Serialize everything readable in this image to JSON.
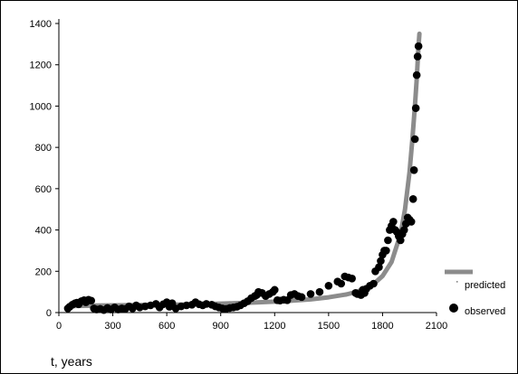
{
  "colors": {
    "predicted": "#8c8c8c",
    "observed": "#000000",
    "axis": "#000000"
  },
  "chart_data": {
    "type": "scatter",
    "title": "",
    "xlabel": "t, years",
    "ylabel": "",
    "xlim": [
      0,
      2100
    ],
    "ylim": [
      0,
      1400
    ],
    "xticks": [
      0,
      300,
      600,
      900,
      1200,
      1500,
      1800,
      2100
    ],
    "yticks": [
      0,
      200,
      400,
      600,
      800,
      1000,
      1200,
      1400
    ],
    "grid": false,
    "legend_position": "bottom-right",
    "series": [
      {
        "name": "predicted",
        "kind": "line",
        "x": [
          50,
          100,
          150,
          200,
          300,
          400,
          500,
          600,
          700,
          800,
          900,
          1000,
          1100,
          1200,
          1300,
          1400,
          1500,
          1600,
          1650,
          1700,
          1750,
          1800,
          1850,
          1900,
          1925,
          1950,
          1965,
          1980,
          1990,
          1995,
          2000,
          2005
        ],
        "y": [
          30,
          32,
          33,
          34,
          35,
          36,
          37,
          38,
          39,
          41,
          43,
          46,
          49,
          53,
          58,
          64,
          74,
          88,
          99,
          114,
          138,
          177,
          245,
          380,
          500,
          680,
          830,
          1000,
          1130,
          1210,
          1290,
          1350
        ]
      },
      {
        "name": "observed",
        "kind": "scatter",
        "x": [
          50,
          60,
          75,
          90,
          100,
          110,
          125,
          140,
          150,
          165,
          180,
          195,
          210,
          230,
          250,
          270,
          290,
          310,
          330,
          350,
          370,
          390,
          410,
          430,
          450,
          480,
          510,
          540,
          560,
          580,
          600,
          615,
          630,
          650,
          680,
          710,
          740,
          760,
          780,
          800,
          820,
          850,
          870,
          890,
          910,
          930,
          950,
          970,
          990,
          1010,
          1030,
          1050,
          1070,
          1090,
          1100,
          1110,
          1130,
          1150,
          1170,
          1190,
          1200,
          1215,
          1230,
          1250,
          1270,
          1290,
          1310,
          1330,
          1350,
          1400,
          1450,
          1500,
          1550,
          1570,
          1590,
          1610,
          1630,
          1650,
          1660,
          1680,
          1690,
          1700,
          1710,
          1730,
          1750,
          1760,
          1780,
          1790,
          1800,
          1810,
          1820,
          1830,
          1840,
          1850,
          1860,
          1870,
          1880,
          1890,
          1900,
          1910,
          1920,
          1930,
          1940,
          1950,
          1960,
          1970,
          1975,
          1980,
          1985,
          1990,
          1995,
          2000
        ],
        "y": [
          20,
          28,
          38,
          45,
          48,
          40,
          55,
          60,
          50,
          62,
          58,
          20,
          15,
          18,
          12,
          22,
          15,
          25,
          15,
          20,
          18,
          30,
          20,
          35,
          25,
          30,
          35,
          42,
          25,
          40,
          50,
          28,
          45,
          20,
          30,
          35,
          38,
          50,
          40,
          35,
          42,
          38,
          30,
          25,
          20,
          18,
          22,
          25,
          28,
          35,
          45,
          55,
          70,
          80,
          85,
          100,
          95,
          80,
          90,
          100,
          110,
          60,
          58,
          62,
          60,
          85,
          90,
          80,
          75,
          90,
          100,
          130,
          150,
          140,
          175,
          170,
          165,
          95,
          90,
          85,
          110,
          95,
          115,
          130,
          140,
          200,
          220,
          250,
          280,
          300,
          300,
          350,
          400,
          420,
          440,
          400,
          390,
          370,
          350,
          380,
          400,
          430,
          460,
          450,
          440,
          550,
          690,
          840,
          990,
          1150,
          1240,
          1290
        ]
      }
    ]
  }
}
